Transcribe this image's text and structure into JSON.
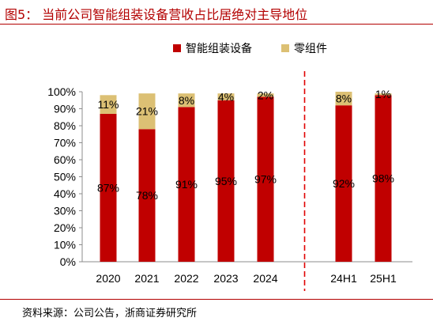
{
  "header": {
    "title": "图5：  当前公司智能组装设备营收占比居绝对主导地位"
  },
  "footer": {
    "source": "资料来源：公司公告，浙商证券研究所"
  },
  "chart_data": {
    "type": "bar",
    "stacked": true,
    "categories": [
      "2020",
      "2021",
      "2022",
      "2023",
      "2024",
      "24H1",
      "25H1"
    ],
    "series": [
      {
        "name": "智能组装设备",
        "color": "#c00000",
        "values": [
          87,
          78,
          91,
          95,
          97,
          92,
          98
        ],
        "labels": [
          "87%",
          "78%",
          "91%",
          "95%",
          "97%",
          "92%",
          "98%"
        ]
      },
      {
        "name": "零组件",
        "color": "#dcc074",
        "values": [
          11,
          21,
          8,
          4,
          2,
          8,
          1
        ],
        "labels": [
          "11%",
          "21%",
          "8%",
          "4%",
          "2%",
          "8%",
          "1%"
        ]
      }
    ],
    "y_ticks": [
      "0%",
      "10%",
      "20%",
      "30%",
      "40%",
      "50%",
      "60%",
      "70%",
      "80%",
      "90%",
      "100%"
    ],
    "ylim": [
      0,
      100
    ],
    "legend_position": "top",
    "divider_after_category": "2024",
    "divider_color": "#e00000"
  }
}
